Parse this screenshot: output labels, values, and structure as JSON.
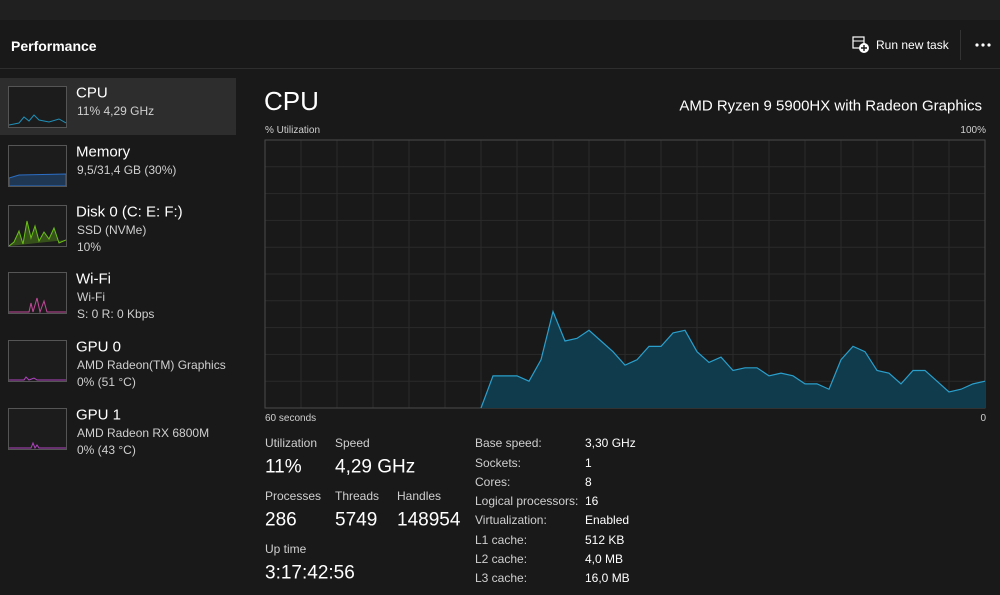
{
  "header": {
    "title": "Performance",
    "run_task": "Run new task"
  },
  "sidebar": {
    "items": [
      {
        "name": "CPU",
        "lines": [
          "11%  4,29 GHz"
        ]
      },
      {
        "name": "Memory",
        "lines": [
          "9,5/31,4 GB (30%)"
        ]
      },
      {
        "name": "Disk 0 (C: E: F:)",
        "lines": [
          "SSD (NVMe)",
          "10%"
        ]
      },
      {
        "name": "Wi-Fi",
        "lines": [
          "Wi-Fi",
          "S: 0  R: 0 Kbps"
        ]
      },
      {
        "name": "GPU 0",
        "lines": [
          "AMD Radeon(TM) Graphics",
          "0%  (51 °C)"
        ]
      },
      {
        "name": "GPU 1",
        "lines": [
          "AMD Radeon RX 6800M",
          "0%  (43 °C)"
        ]
      }
    ]
  },
  "main": {
    "title": "CPU",
    "model": "AMD Ryzen 9 5900HX with Radeon Graphics",
    "graph": {
      "y_label": "% Utilization",
      "y_max_label": "100%",
      "x_start_label": "60 seconds",
      "x_end_label": "0",
      "ylim": [
        0,
        100
      ],
      "values": [
        null,
        null,
        null,
        null,
        null,
        null,
        null,
        null,
        null,
        null,
        null,
        null,
        null,
        null,
        null,
        null,
        null,
        null,
        0,
        12,
        12,
        12,
        10,
        18,
        36,
        25,
        26,
        29,
        25,
        21,
        16,
        18,
        23,
        23,
        28,
        29,
        21,
        17,
        19,
        14,
        15,
        15,
        12,
        13,
        12,
        9,
        9,
        7,
        18,
        23,
        21,
        14,
        13,
        9,
        14,
        14,
        10,
        6,
        7,
        9,
        10
      ]
    },
    "stats": [
      {
        "label": "Utilization",
        "value": "11%"
      },
      {
        "label": "Speed",
        "value": "4,29 GHz"
      },
      {
        "label": "Processes",
        "value": "286"
      },
      {
        "label": "Threads",
        "value": "5749"
      },
      {
        "label": "Handles",
        "value": "148954"
      },
      {
        "label": "Up time",
        "value": "3:17:42:56"
      }
    ],
    "details": [
      {
        "label": "Base speed:",
        "value": "3,30 GHz"
      },
      {
        "label": "Sockets:",
        "value": "1"
      },
      {
        "label": "Cores:",
        "value": "8"
      },
      {
        "label": "Logical processors:",
        "value": "16"
      },
      {
        "label": "Virtualization:",
        "value": "Enabled"
      },
      {
        "label": "L1 cache:",
        "value": "512 KB"
      },
      {
        "label": "L2 cache:",
        "value": "4,0 MB"
      },
      {
        "label": "L3 cache:",
        "value": "16,0 MB"
      }
    ]
  }
}
